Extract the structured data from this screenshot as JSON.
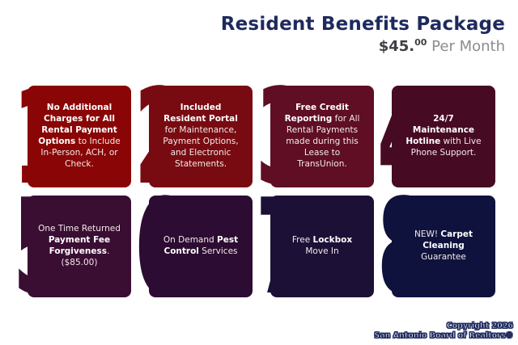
{
  "header": {
    "title": "Resident Benefits Package",
    "price_main": "$45.",
    "price_sup": "00",
    "price_suffix": " Per Month"
  },
  "title_color": "#1e2a5e",
  "cards": [
    {
      "number": "1",
      "color": "#8a0505",
      "segments": [
        {
          "t": "No Additional Charges for All Rental Payment Options",
          "b": true
        },
        {
          "t": " to Include In-Person, ACH, or Check.",
          "b": false
        }
      ]
    },
    {
      "number": "2",
      "color": "#780b11",
      "segments": [
        {
          "t": "Included Resident Portal",
          "b": true
        },
        {
          "t": " for Maintenance, Payment Options, and Electronic Statements.",
          "b": false
        }
      ]
    },
    {
      "number": "3",
      "color": "#5f0e24",
      "segments": [
        {
          "t": "Free Credit Reporting",
          "b": true
        },
        {
          "t": " for All Rental Payments made during this Lease to TransUnion.",
          "b": false
        }
      ]
    },
    {
      "number": "4",
      "color": "#470a23",
      "segments": [
        {
          "t": "24/7 Maintenance Hotline",
          "b": true
        },
        {
          "t": " with Live Phone Support.",
          "b": false
        }
      ]
    },
    {
      "number": "5",
      "color": "#3a0d33",
      "segments": [
        {
          "t": "One Time Returned ",
          "b": false
        },
        {
          "t": "Payment Fee Forgiveness",
          "b": true
        },
        {
          "t": ". ($85.00)",
          "b": false
        }
      ]
    },
    {
      "number": "6",
      "color": "#2c0c32",
      "segments": [
        {
          "t": "On Demand ",
          "b": false
        },
        {
          "t": "Pest Control",
          "b": true
        },
        {
          "t": " Services",
          "b": false
        }
      ]
    },
    {
      "number": "7",
      "color": "#1d1036",
      "segments": [
        {
          "t": "Free ",
          "b": false
        },
        {
          "t": "Lockbox",
          "b": true
        },
        {
          "t": " Move In",
          "b": false
        }
      ]
    },
    {
      "number": "8",
      "color": "#0f123d",
      "segments": [
        {
          "t": "NEW! ",
          "b": false
        },
        {
          "t": "Carpet Cleaning",
          "b": true
        },
        {
          "t": " Guarantee",
          "b": false
        }
      ]
    }
  ],
  "footer": {
    "line1": "Copyright 2026",
    "line2": "San Antonio Board of Realtors®"
  }
}
